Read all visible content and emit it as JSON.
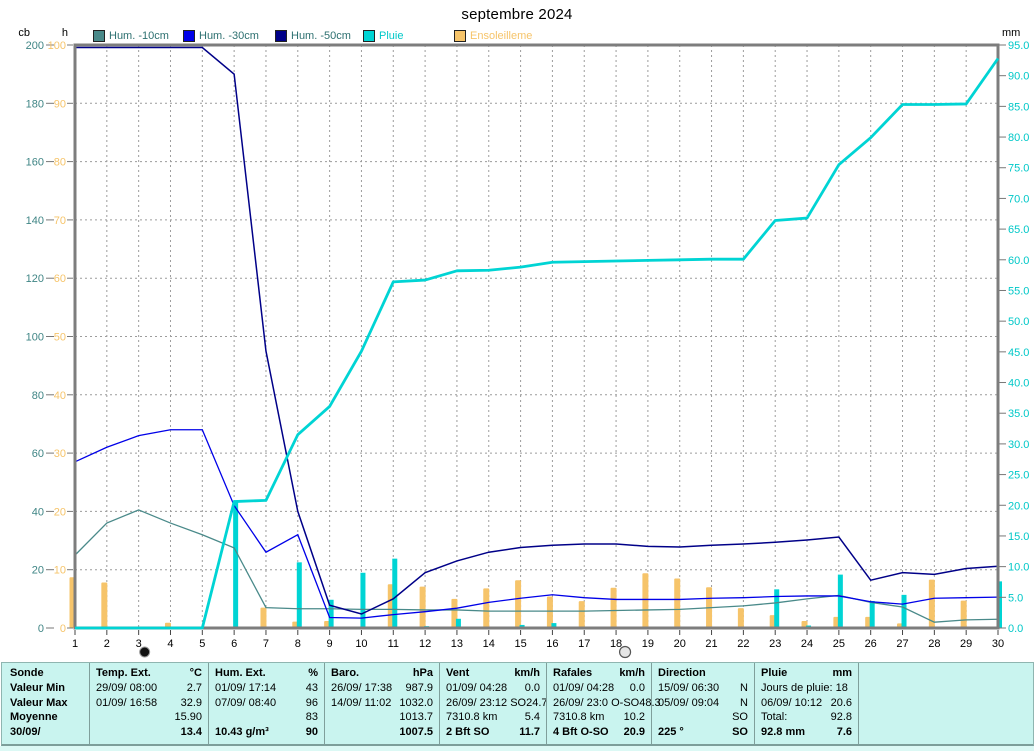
{
  "chart_data": {
    "type": "mixed",
    "title": "septembre 2024",
    "days": [
      1,
      2,
      3,
      4,
      5,
      6,
      7,
      8,
      9,
      10,
      11,
      12,
      13,
      14,
      15,
      16,
      17,
      18,
      19,
      20,
      21,
      22,
      23,
      24,
      25,
      26,
      27,
      28,
      29,
      30
    ],
    "axes": {
      "left_primary": {
        "unit": "cb",
        "min": 0,
        "max": 200,
        "step": 20,
        "color": "#3f8585"
      },
      "left_secondary": {
        "unit": "h",
        "min": 0,
        "max": 100,
        "step": 10,
        "color": "#f6c46a"
      },
      "right": {
        "unit": "mm",
        "min": 0,
        "max": 95,
        "step": 5,
        "color": "#00c8c8"
      },
      "x_color": "#000000",
      "grid_color": "#9c9c9c",
      "frame_color": "#7d7d7d"
    },
    "series": [
      {
        "name": "Hum. -10cm",
        "type": "line",
        "axis": "cb",
        "color": "#4a8a8a",
        "label_color": "#2d7070",
        "values": [
          25,
          36,
          40.5,
          36,
          32,
          27.5,
          7,
          6.6,
          6.6,
          6.4,
          6.4,
          6.2,
          6.2,
          5.8,
          5.8,
          5.8,
          5.8,
          6,
          6.2,
          6.4,
          7,
          7.6,
          8.6,
          10,
          11.2,
          8.8,
          7.2,
          2,
          2.8,
          3
        ]
      },
      {
        "name": "Hum. -30cm",
        "type": "line",
        "axis": "cb",
        "color": "#0000e8",
        "label_color": "#2d7070",
        "values": [
          57,
          62,
          66,
          68,
          68,
          42,
          26,
          32,
          3.6,
          3.4,
          4.6,
          5.6,
          6.8,
          8.8,
          10.2,
          11.4,
          10.4,
          9.8,
          9.8,
          9.8,
          10.2,
          10.4,
          10.8,
          11,
          11,
          9,
          8.2,
          10.2,
          10.4,
          10.6
        ]
      },
      {
        "name": "Hum. -50cm",
        "type": "line",
        "axis": "cb",
        "color": "#000088",
        "label_color": "#2d7070",
        "values": [
          200,
          200,
          200,
          200,
          200,
          190,
          95,
          40,
          7.8,
          4.8,
          10,
          19,
          23,
          26,
          27.6,
          28.4,
          28.8,
          28.8,
          28,
          27.8,
          28.4,
          28.8,
          29.4,
          30.2,
          31.2,
          16.4,
          19,
          18.4,
          20.4,
          21.2
        ]
      },
      {
        "name": "Pluie",
        "type": "bar",
        "axis": "mm",
        "color": "#00d4d4",
        "label_color": "#00c8c8",
        "values": [
          0,
          0,
          0,
          0,
          0,
          20.6,
          0.2,
          10.7,
          4.6,
          9,
          11.3,
          0.3,
          1.5,
          0.1,
          0.5,
          0.8,
          0.1,
          0.1,
          0.1,
          0.1,
          0.1,
          0,
          6.3,
          0.4,
          8.7,
          4.4,
          5.4,
          0,
          0.1,
          7.6
        ],
        "cumulative": [
          0,
          0,
          0,
          0,
          0,
          20.6,
          20.8,
          31.5,
          36.1,
          45.1,
          56.4,
          56.7,
          58.2,
          58.3,
          58.8,
          59.6,
          59.7,
          59.8,
          59.9,
          60,
          60.1,
          60.1,
          66.4,
          66.8,
          75.5,
          79.9,
          85.3,
          85.3,
          85.4,
          92.8
        ]
      },
      {
        "name": "Ensoleilleme",
        "type": "bar",
        "axis": "h",
        "color": "#f6c46a",
        "label_color": "#f6c46a",
        "values": [
          8.7,
          7.8,
          0,
          0.9,
          0,
          0,
          3.5,
          1.1,
          1.2,
          0,
          7.5,
          7.1,
          5,
          6.8,
          8.2,
          5.4,
          4.6,
          6.9,
          9.4,
          8.5,
          7,
          3.4,
          2.2,
          1.2,
          1.9,
          1.9,
          0.8,
          8.3,
          4.7,
          0
        ]
      }
    ],
    "moon_phases": [
      {
        "day": 3,
        "phase": "new-moon"
      },
      {
        "day": 18,
        "phase": "full-moon"
      }
    ],
    "legend_x": [
      93,
      183,
      275,
      363,
      454
    ]
  },
  "stats_table": {
    "row_labels": [
      "Sonde",
      "Valeur Min",
      "Valeur Max",
      "Moyenne",
      "30/09/"
    ],
    "columns": [
      {
        "title": "Temp. Ext.",
        "unit": "°C",
        "rows": [
          [
            "29/09/ 08:00",
            "2.7"
          ],
          [
            "01/09/ 16:58",
            "32.9"
          ],
          [
            "",
            "15.90"
          ],
          [
            "",
            "13.4"
          ]
        ]
      },
      {
        "title": "Hum. Ext.",
        "unit": "%",
        "rows": [
          [
            "01/09/ 17:14",
            "43"
          ],
          [
            "07/09/ 08:40",
            "96"
          ],
          [
            "",
            "83"
          ],
          [
            "10.43 g/m³",
            "90"
          ]
        ]
      },
      {
        "title": "Baro.",
        "unit": "hPa",
        "rows": [
          [
            "26/09/ 17:38",
            "987.9"
          ],
          [
            "14/09/ 11:02",
            "1032.0"
          ],
          [
            "",
            "1013.7"
          ],
          [
            "",
            "1007.5"
          ]
        ]
      },
      {
        "title": "Vent",
        "unit": "km/h",
        "rows": [
          [
            "01/09/ 04:28",
            "0.0"
          ],
          [
            "26/09/ 23:12 SO",
            "24.7"
          ],
          [
            "7310.8 km",
            "5.4"
          ],
          [
            "2 Bft SO",
            "11.7"
          ]
        ]
      },
      {
        "title": "Rafales",
        "unit": "km/h",
        "rows": [
          [
            "01/09/ 04:28",
            "0.0"
          ],
          [
            "26/09/ 23:0 O-SO",
            "48.3"
          ],
          [
            "7310.8 km",
            "10.2"
          ],
          [
            "4 Bft O-SO",
            "20.9"
          ]
        ]
      },
      {
        "title": "Direction",
        "unit": "",
        "rows": [
          [
            "15/09/ 06:30",
            "N"
          ],
          [
            "05/09/ 09:04",
            "N"
          ],
          [
            "",
            "SO"
          ],
          [
            "225 °",
            "SO"
          ]
        ]
      },
      {
        "title": "Pluie",
        "unit": "mm",
        "rows": [
          [
            "Jours de pluie: 18",
            ""
          ],
          [
            "06/09/ 10:12",
            "20.6"
          ],
          [
            "Total:",
            "92.8"
          ],
          [
            "92.8 mm",
            "7.6"
          ]
        ]
      }
    ]
  }
}
